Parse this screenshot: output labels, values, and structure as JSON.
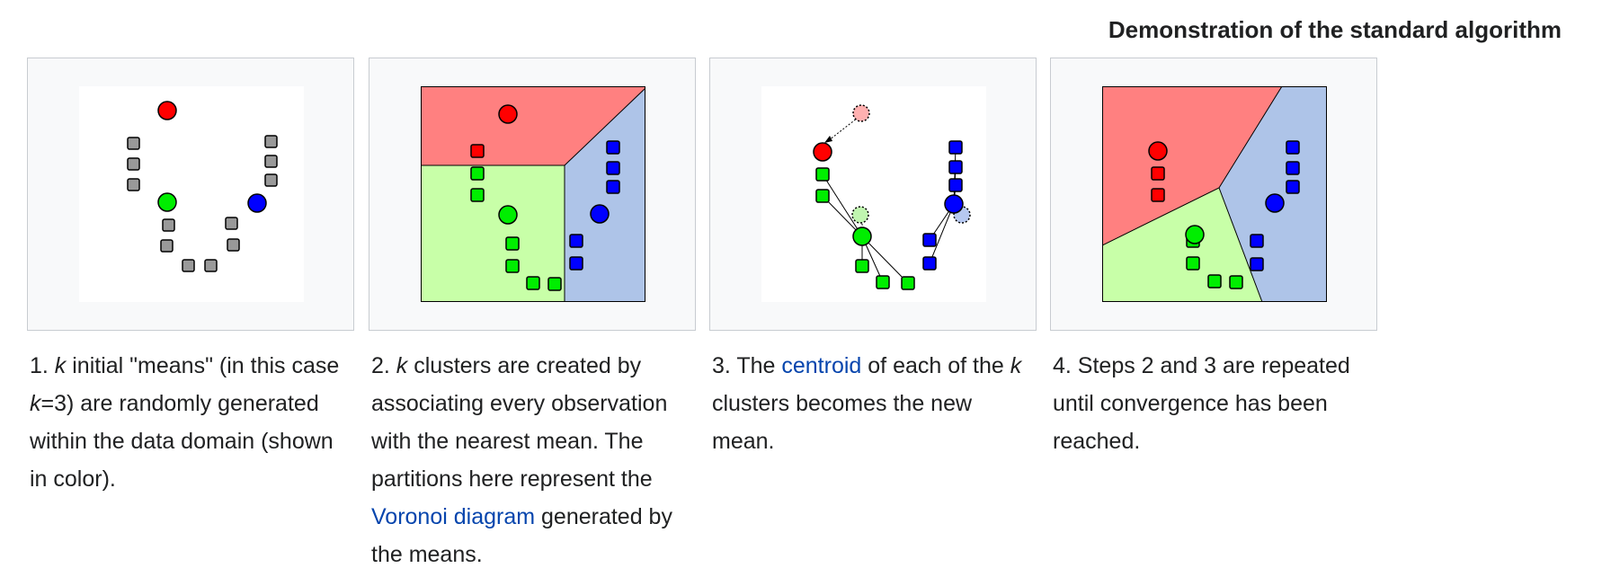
{
  "heading": "Demonstration of the standard algorithm",
  "colors": {
    "red": "#ff0000",
    "green": "#00ee00",
    "blue": "#0000ff",
    "gray": "#999999",
    "region_red": "#ff8080",
    "region_green": "#c8ffa8",
    "region_blue": "#aec4e8",
    "link": "#0645ad",
    "frame": "#f8f9fa"
  },
  "panels": [
    {
      "caption": {
        "p1": "1. ",
        "k1": "k",
        "p2": " initial \"means\" (in this case ",
        "k2": "k",
        "p3": "=3) are randomly generated within the data domain (shown in color)."
      }
    },
    {
      "caption": {
        "p1": "2. ",
        "k1": "k",
        "p2": " clusters are created by associating every observation with the nearest mean. The partitions here represent the ",
        "link": "Voronoi diagram",
        "p3": " generated by the means."
      }
    },
    {
      "caption": {
        "p1": "3. The ",
        "link": "centroid",
        "p2": " of each of the ",
        "k1": "k",
        "p3": " clusters becomes the new mean."
      }
    },
    {
      "caption": {
        "text": "4. Steps 2 and 3 are repeated until convergence has been reached."
      }
    }
  ]
}
